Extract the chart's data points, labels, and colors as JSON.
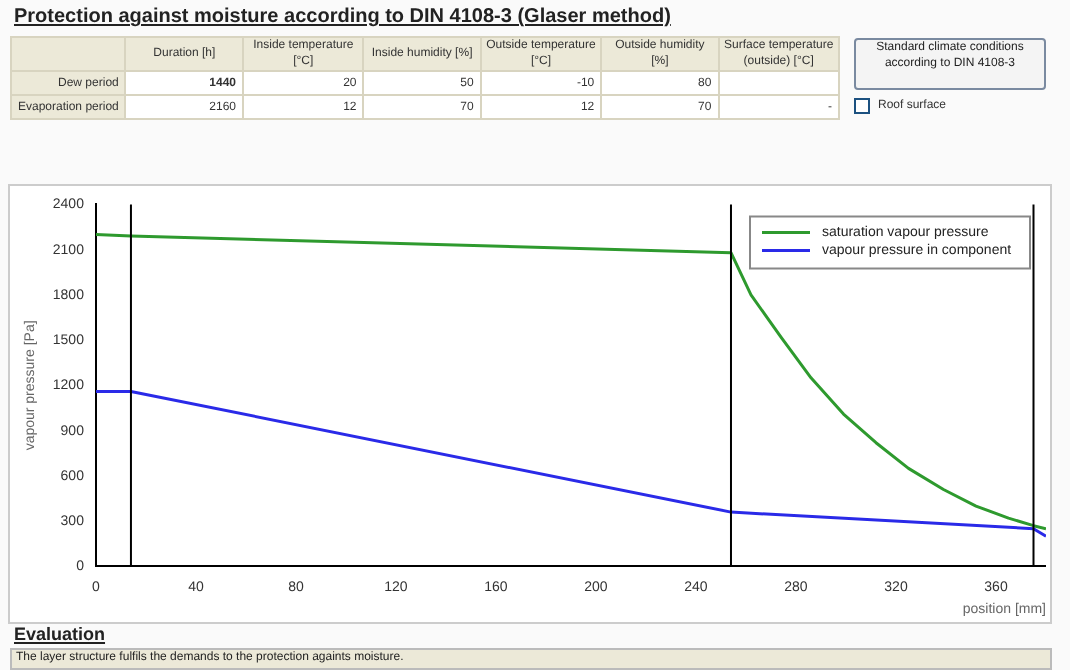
{
  "chart_data": {
    "type": "line",
    "title": "Protection against moisture according to DIN 4108-3 (Glaser method)",
    "xlabel": "position [mm]",
    "ylabel": "vapour pressure [Pa]",
    "series": [
      {
        "name": "saturation vapour pressure",
        "color": "#2e9a2e",
        "x": [
          0,
          14,
          254,
          262,
          274,
          286,
          299,
          312,
          325,
          339,
          352,
          365,
          375,
          380
        ],
        "values": [
          2200,
          2190,
          2080,
          1800,
          1520,
          1250,
          1010,
          820,
          650,
          510,
          400,
          320,
          270,
          250
        ]
      },
      {
        "name": "vapour pressure in component",
        "color": "#2a2ae8",
        "x": [
          0,
          14,
          254,
          375,
          380
        ],
        "values": [
          1160,
          1160,
          360,
          250,
          200
        ]
      }
    ],
    "xlim": [
      0,
      380
    ],
    "xticks": [
      0,
      40,
      80,
      120,
      160,
      200,
      240,
      280,
      320,
      360
    ],
    "ylim": [
      0,
      2400
    ],
    "yticks": [
      0,
      300,
      600,
      900,
      1200,
      1500,
      1800,
      2100,
      2400
    ],
    "ref_lines": [
      {
        "axis": "x",
        "value": 14,
        "color": "#000000"
      },
      {
        "axis": "x",
        "value": 254,
        "color": "#000000"
      },
      {
        "axis": "x",
        "value": 375,
        "color": "#000000"
      }
    ],
    "grid": false,
    "legend": "top right",
    "marker": "none",
    "line_style": "solid",
    "annotations": [
      "Duration [h]",
      "Inside temperature [°C]",
      "Inside humidity [%]",
      "Outside temperature [°C]",
      "Outside humidity [%]",
      "Surface temperature (outside) [°C]",
      "Dew period",
      "1440",
      "20",
      "50",
      "-10",
      "80",
      "Evaporation period",
      "2160",
      "12",
      "70",
      "12",
      "70",
      "-",
      "Standard climate conditions according to DIN 4108-3",
      "Roof surface",
      "Evaluation",
      "The layer structure fulfils the demands to the protection againts moisture."
    ]
  }
}
